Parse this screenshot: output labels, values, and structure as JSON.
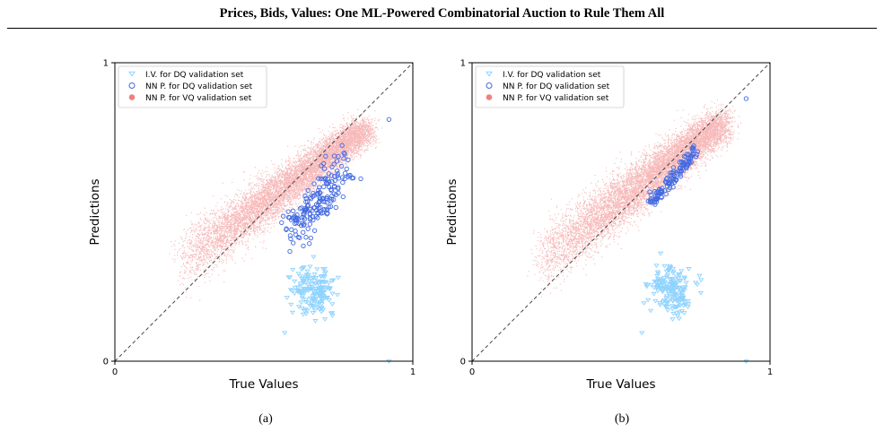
{
  "header": {
    "title": "Prices, Bids, Values: One ML-Powered Combinatorial Auction to Rule Them All"
  },
  "colors": {
    "iv_dq": "#8fd3ff",
    "nn_dq": "#4169e1",
    "nn_vq": "#f08080",
    "diagonal": "#444444"
  },
  "chart_data": [
    {
      "type": "scatter",
      "caption": "(a)",
      "xlabel": "True Values",
      "ylabel": "Predictions",
      "xlim": [
        0,
        1
      ],
      "ylim": [
        0,
        1
      ],
      "xticks": [
        "0",
        "1"
      ],
      "yticks": [
        "0",
        "1"
      ],
      "grid": false,
      "legend_position": "top-left",
      "diagonal": true,
      "series": [
        {
          "name": "I.V. for DQ validation set",
          "marker": "triangle-down",
          "color": "#8fd3ff",
          "points_summary": {
            "count": 180,
            "x_center": 0.67,
            "x_sd": 0.035,
            "y_center": 0.24,
            "y_sd": 0.04
          },
          "outliers": [
            [
              0.57,
              0.095
            ],
            [
              0.92,
              0.0
            ]
          ]
        },
        {
          "name": "NN P. for DQ validation set",
          "marker": "circle-open",
          "color": "#4169e1",
          "points_summary": {
            "count": 180,
            "x_from": 0.59,
            "x_to": 0.78,
            "y_from": 0.43,
            "y_to": 0.65,
            "spread": 0.035
          },
          "outliers": [
            [
              0.92,
              0.81
            ]
          ]
        },
        {
          "name": "NN P. for VQ validation set",
          "marker": "dot",
          "color": "#f08080",
          "points_summary": {
            "count": 9000,
            "x_from": 0.22,
            "x_to": 0.84,
            "y_from": 0.33,
            "y_to": 0.78,
            "spread": 0.05
          }
        }
      ]
    },
    {
      "type": "scatter",
      "caption": "(b)",
      "xlabel": "True Values",
      "ylabel": "Predictions",
      "xlim": [
        0,
        1
      ],
      "ylim": [
        0,
        1
      ],
      "xticks": [
        "0",
        "1"
      ],
      "yticks": [
        "0",
        "1"
      ],
      "grid": false,
      "legend_position": "top-left",
      "diagonal": true,
      "series": [
        {
          "name": "I.V. for DQ validation set",
          "marker": "triangle-down",
          "color": "#8fd3ff",
          "points_summary": {
            "count": 180,
            "x_center": 0.67,
            "x_sd": 0.035,
            "y_center": 0.24,
            "y_sd": 0.04
          },
          "outliers": [
            [
              0.57,
              0.095
            ],
            [
              0.92,
              0.0
            ]
          ]
        },
        {
          "name": "NN P. for DQ validation set",
          "marker": "circle-open",
          "color": "#4169e1",
          "points_summary": {
            "count": 120,
            "x_from": 0.6,
            "x_to": 0.75,
            "y_from": 0.53,
            "y_to": 0.7,
            "spread": 0.012
          },
          "outliers": [
            [
              0.92,
              0.88
            ]
          ]
        },
        {
          "name": "NN P. for VQ validation set",
          "marker": "dot",
          "color": "#f08080",
          "points_summary": {
            "count": 9000,
            "x_from": 0.22,
            "x_to": 0.84,
            "y_from": 0.33,
            "y_to": 0.8,
            "spread": 0.05
          }
        }
      ]
    }
  ]
}
